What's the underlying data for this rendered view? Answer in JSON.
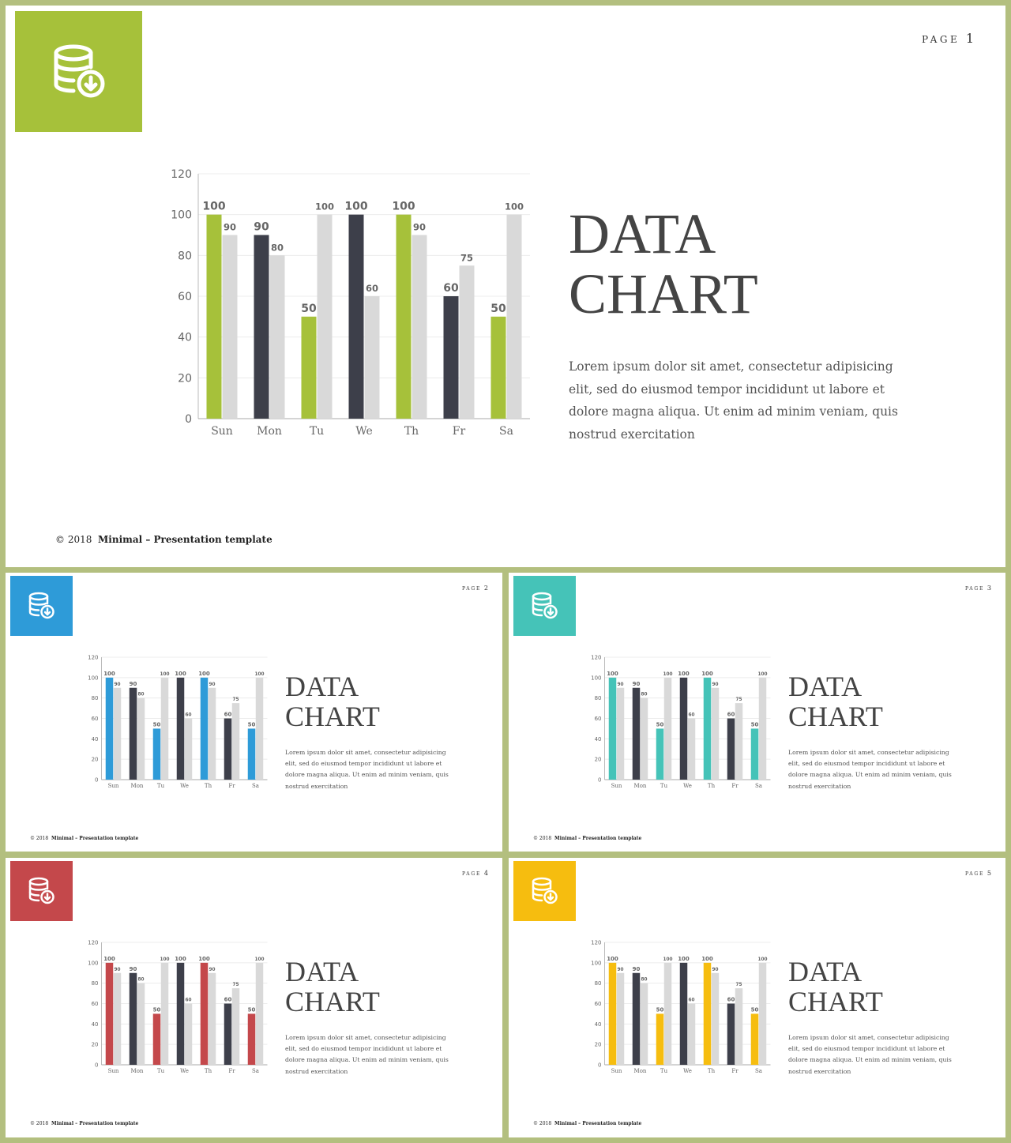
{
  "slides": [
    {
      "page_word": "PAGE",
      "page_number": "1",
      "accent": "#a6c13a",
      "title_line1": "DATA",
      "title_line2": "CHART",
      "description": "Lorem ipsum dolor sit amet, consectetur adipisicing elit, sed do eiusmod tempor incididunt ut labore et dolore magna aliqua. Ut enim ad minim veniam, quis nostrud exercitation",
      "footer_year": "© 2018",
      "footer_title": "Minimal – Presentation template",
      "icon": "database-download-icon"
    },
    {
      "page_word": "PAGE",
      "page_number": "2",
      "accent": "#2e9bd8",
      "title_line1": "DATA",
      "title_line2": "CHART",
      "description": "Lorem ipsum dolor sit amet, consectetur adipisicing elit, sed do eiusmod tempor incididunt ut labore et dolore magna aliqua. Ut enim ad minim veniam, quis nostrud exercitation",
      "footer_year": "© 2018",
      "footer_title": "Minimal – Presentation template",
      "icon": "database-download-icon"
    },
    {
      "page_word": "PAGE",
      "page_number": "3",
      "accent": "#45c3b8",
      "title_line1": "DATA",
      "title_line2": "CHART",
      "description": "Lorem ipsum dolor sit amet, consectetur adipisicing elit, sed do eiusmod tempor incididunt ut labore et dolore magna aliqua. Ut enim ad minim veniam, quis nostrud exercitation",
      "footer_year": "© 2018",
      "footer_title": "Minimal – Presentation template",
      "icon": "database-download-icon"
    },
    {
      "page_word": "PAGE",
      "page_number": "4",
      "accent": "#c4484b",
      "title_line1": "DATA",
      "title_line2": "CHART",
      "description": "Lorem ipsum dolor sit amet, consectetur adipisicing elit, sed do eiusmod tempor incididunt ut labore et dolore magna aliqua. Ut enim ad minim veniam, quis nostrud exercitation",
      "footer_year": "© 2018",
      "footer_title": "Minimal – Presentation template",
      "icon": "database-download-icon"
    },
    {
      "page_word": "PAGE",
      "page_number": "5",
      "accent": "#f6bd0f",
      "title_line1": "DATA",
      "title_line2": "CHART",
      "description": "Lorem ipsum dolor sit amet, consectetur adipisicing elit, sed do eiusmod tempor incididunt ut labore et dolore magna aliqua. Ut enim ad minim veniam, quis nostrud exercitation",
      "footer_year": "© 2018",
      "footer_title": "Minimal – Presentation template",
      "icon": "database-download-icon"
    }
  ],
  "chart_data": {
    "type": "bar",
    "categories": [
      "Sun",
      "Mon",
      "Tu",
      "We",
      "Th",
      "Fr",
      "Sa"
    ],
    "series": [
      {
        "values": [
          100,
          90,
          50,
          100,
          100,
          60,
          50
        ],
        "colors": [
          "accent",
          "dark",
          "accent",
          "dark",
          "accent",
          "dark",
          "accent"
        ]
      },
      {
        "values": [
          90,
          80,
          100,
          60,
          90,
          75,
          100
        ],
        "color": "#d9d9d9"
      }
    ],
    "dark_color": "#3d3f4a",
    "yticks": [
      0,
      20,
      40,
      60,
      80,
      100,
      120
    ],
    "ylim": [
      0,
      120
    ],
    "grid": true,
    "legend": "none"
  }
}
